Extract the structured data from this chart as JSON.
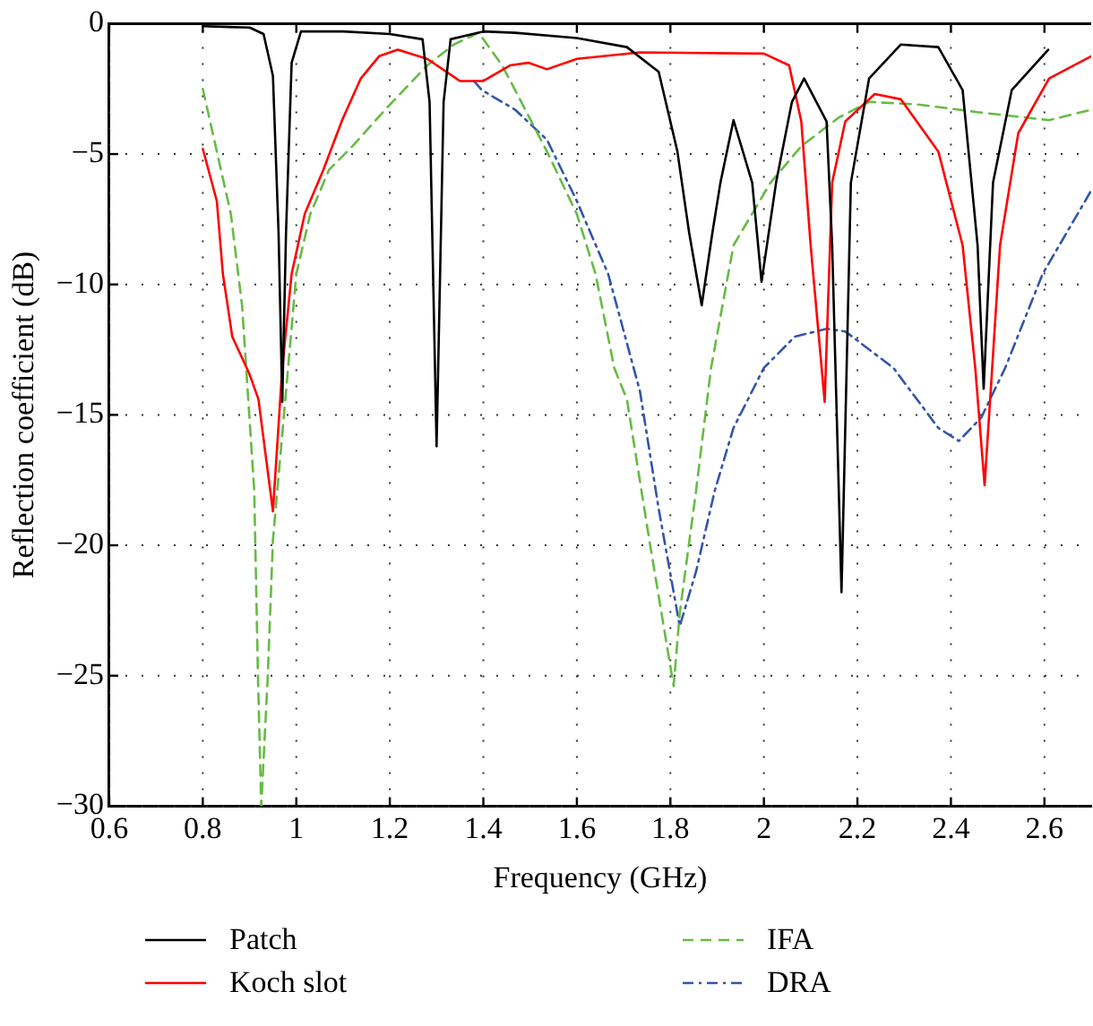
{
  "chart_data": {
    "type": "line",
    "xlabel": "Frequency (GHz)",
    "ylabel": "Reflection coefficient (dB)",
    "xlim": [
      0.6,
      2.7
    ],
    "xticks": [
      0.6,
      0.8,
      {
        "value": 1,
        "label": "1"
      },
      1.2,
      1.4,
      1.6,
      1.8,
      {
        "value": 2,
        "label": "2"
      },
      2.2,
      2.4,
      2.6
    ],
    "ylim": [
      -30,
      0
    ],
    "yticks": [
      -30,
      -25,
      -20,
      -15,
      -10,
      -5,
      0
    ],
    "grid": true,
    "legend": "bottom",
    "marker": "none",
    "series": [
      {
        "name": "Patch",
        "color": "#000000",
        "line_style": "solid",
        "x": [
          0.8,
          0.9,
          0.93,
          0.95,
          0.962,
          0.97,
          0.978,
          0.99,
          1.01,
          1.1,
          1.2,
          1.27,
          1.285,
          1.3,
          1.315,
          1.33,
          1.4,
          1.468,
          1.6,
          1.707,
          1.775,
          1.815,
          1.84,
          1.867,
          1.89,
          1.907,
          1.935,
          1.975,
          1.995,
          2.026,
          2.06,
          2.086,
          2.134,
          2.146,
          2.166,
          2.186,
          2.225,
          2.293,
          2.373,
          2.425,
          2.457,
          2.47,
          2.49,
          2.53,
          2.608
        ],
        "values": [
          -0.1,
          -0.15,
          -0.4,
          -2,
          -8,
          -14.5,
          -8,
          -1.5,
          -0.3,
          -0.3,
          -0.4,
          -0.6,
          -3,
          -16.2,
          -3,
          -0.6,
          -0.3,
          -0.35,
          -0.55,
          -0.9,
          -1.85,
          -4.9,
          -8,
          -10.8,
          -8,
          -6.1,
          -3.7,
          -6.1,
          -9.9,
          -6.1,
          -3,
          -2.1,
          -3.75,
          -8.5,
          -21.8,
          -6.1,
          -2.1,
          -0.8,
          -0.9,
          -2.55,
          -8.5,
          -14,
          -6.1,
          -2.55,
          -1.0
        ]
      },
      {
        "name": "Koch slot",
        "color": "#ff0000",
        "line_style": "solid",
        "x": [
          0.8,
          0.83,
          0.843,
          0.863,
          0.899,
          0.919,
          0.95,
          0.97,
          0.99,
          1.018,
          1.058,
          1.098,
          1.138,
          1.177,
          1.217,
          1.28,
          1.35,
          1.4,
          1.457,
          1.496,
          1.536,
          1.6,
          1.735,
          2.0,
          2.054,
          2.08,
          2.1,
          2.13,
          2.146,
          2.174,
          2.237,
          2.293,
          2.373,
          2.425,
          2.452,
          2.472,
          2.485,
          2.505,
          2.544,
          2.61,
          2.7
        ],
        "values": [
          -4.8,
          -6.8,
          -9.6,
          -12,
          -13.4,
          -14.4,
          -18.7,
          -13.2,
          -9.6,
          -7.3,
          -5.6,
          -3.7,
          -2.1,
          -1.25,
          -1.0,
          -1.35,
          -2.2,
          -2.2,
          -1.6,
          -1.5,
          -1.75,
          -1.35,
          -1.1,
          -1.15,
          -1.6,
          -3.75,
          -8.5,
          -14.5,
          -6.1,
          -3.75,
          -2.7,
          -2.9,
          -4.9,
          -8.5,
          -13.2,
          -17.7,
          -14.1,
          -8.5,
          -4.2,
          -2.1,
          -1.25
        ]
      },
      {
        "name": "IFA",
        "color": "#66bb44",
        "line_style": "dashed",
        "x": [
          0.8,
          0.83,
          0.86,
          0.884,
          0.91,
          0.918,
          0.925,
          0.939,
          0.95,
          0.978,
          1.0,
          1.03,
          1.07,
          1.12,
          1.19,
          1.28,
          1.337,
          1.39,
          1.44,
          1.468,
          1.536,
          1.6,
          1.64,
          1.68,
          1.707,
          1.755,
          1.807,
          1.82,
          1.855,
          1.887,
          1.935,
          2.014,
          2.08,
          2.16,
          2.225,
          2.33,
          2.46,
          2.61,
          2.7
        ],
        "values": [
          -2.5,
          -4.9,
          -7.3,
          -10.8,
          -17.9,
          -25,
          -30,
          -25,
          -19.8,
          -14.1,
          -9.6,
          -7.3,
          -5.6,
          -4.7,
          -3.3,
          -1.6,
          -0.8,
          -0.35,
          -1.6,
          -2.55,
          -4.9,
          -7.3,
          -9.6,
          -13.2,
          -14.4,
          -19.8,
          -25.4,
          -22.6,
          -17.9,
          -13.2,
          -8.5,
          -6.1,
          -4.7,
          -3.6,
          -3.0,
          -3.1,
          -3.4,
          -3.7,
          -3.3
        ]
      },
      {
        "name": "DRA",
        "color": "#3355aa",
        "line_style": "dashdot",
        "x": [
          1.38,
          1.397,
          1.468,
          1.536,
          1.6,
          1.667,
          1.735,
          1.775,
          1.82,
          1.855,
          1.895,
          1.935,
          2.0,
          2.066,
          2.134,
          2.174,
          2.277,
          2.373,
          2.417,
          2.465,
          2.516,
          2.596,
          2.7
        ],
        "values": [
          -2.2,
          -2.55,
          -3.3,
          -4.45,
          -6.8,
          -9.6,
          -14.1,
          -18.6,
          -23.1,
          -21,
          -17.9,
          -15.5,
          -13.2,
          -12,
          -11.7,
          -11.8,
          -13.2,
          -15.5,
          -16,
          -15.1,
          -13.2,
          -9.6,
          -6.4
        ]
      }
    ]
  }
}
